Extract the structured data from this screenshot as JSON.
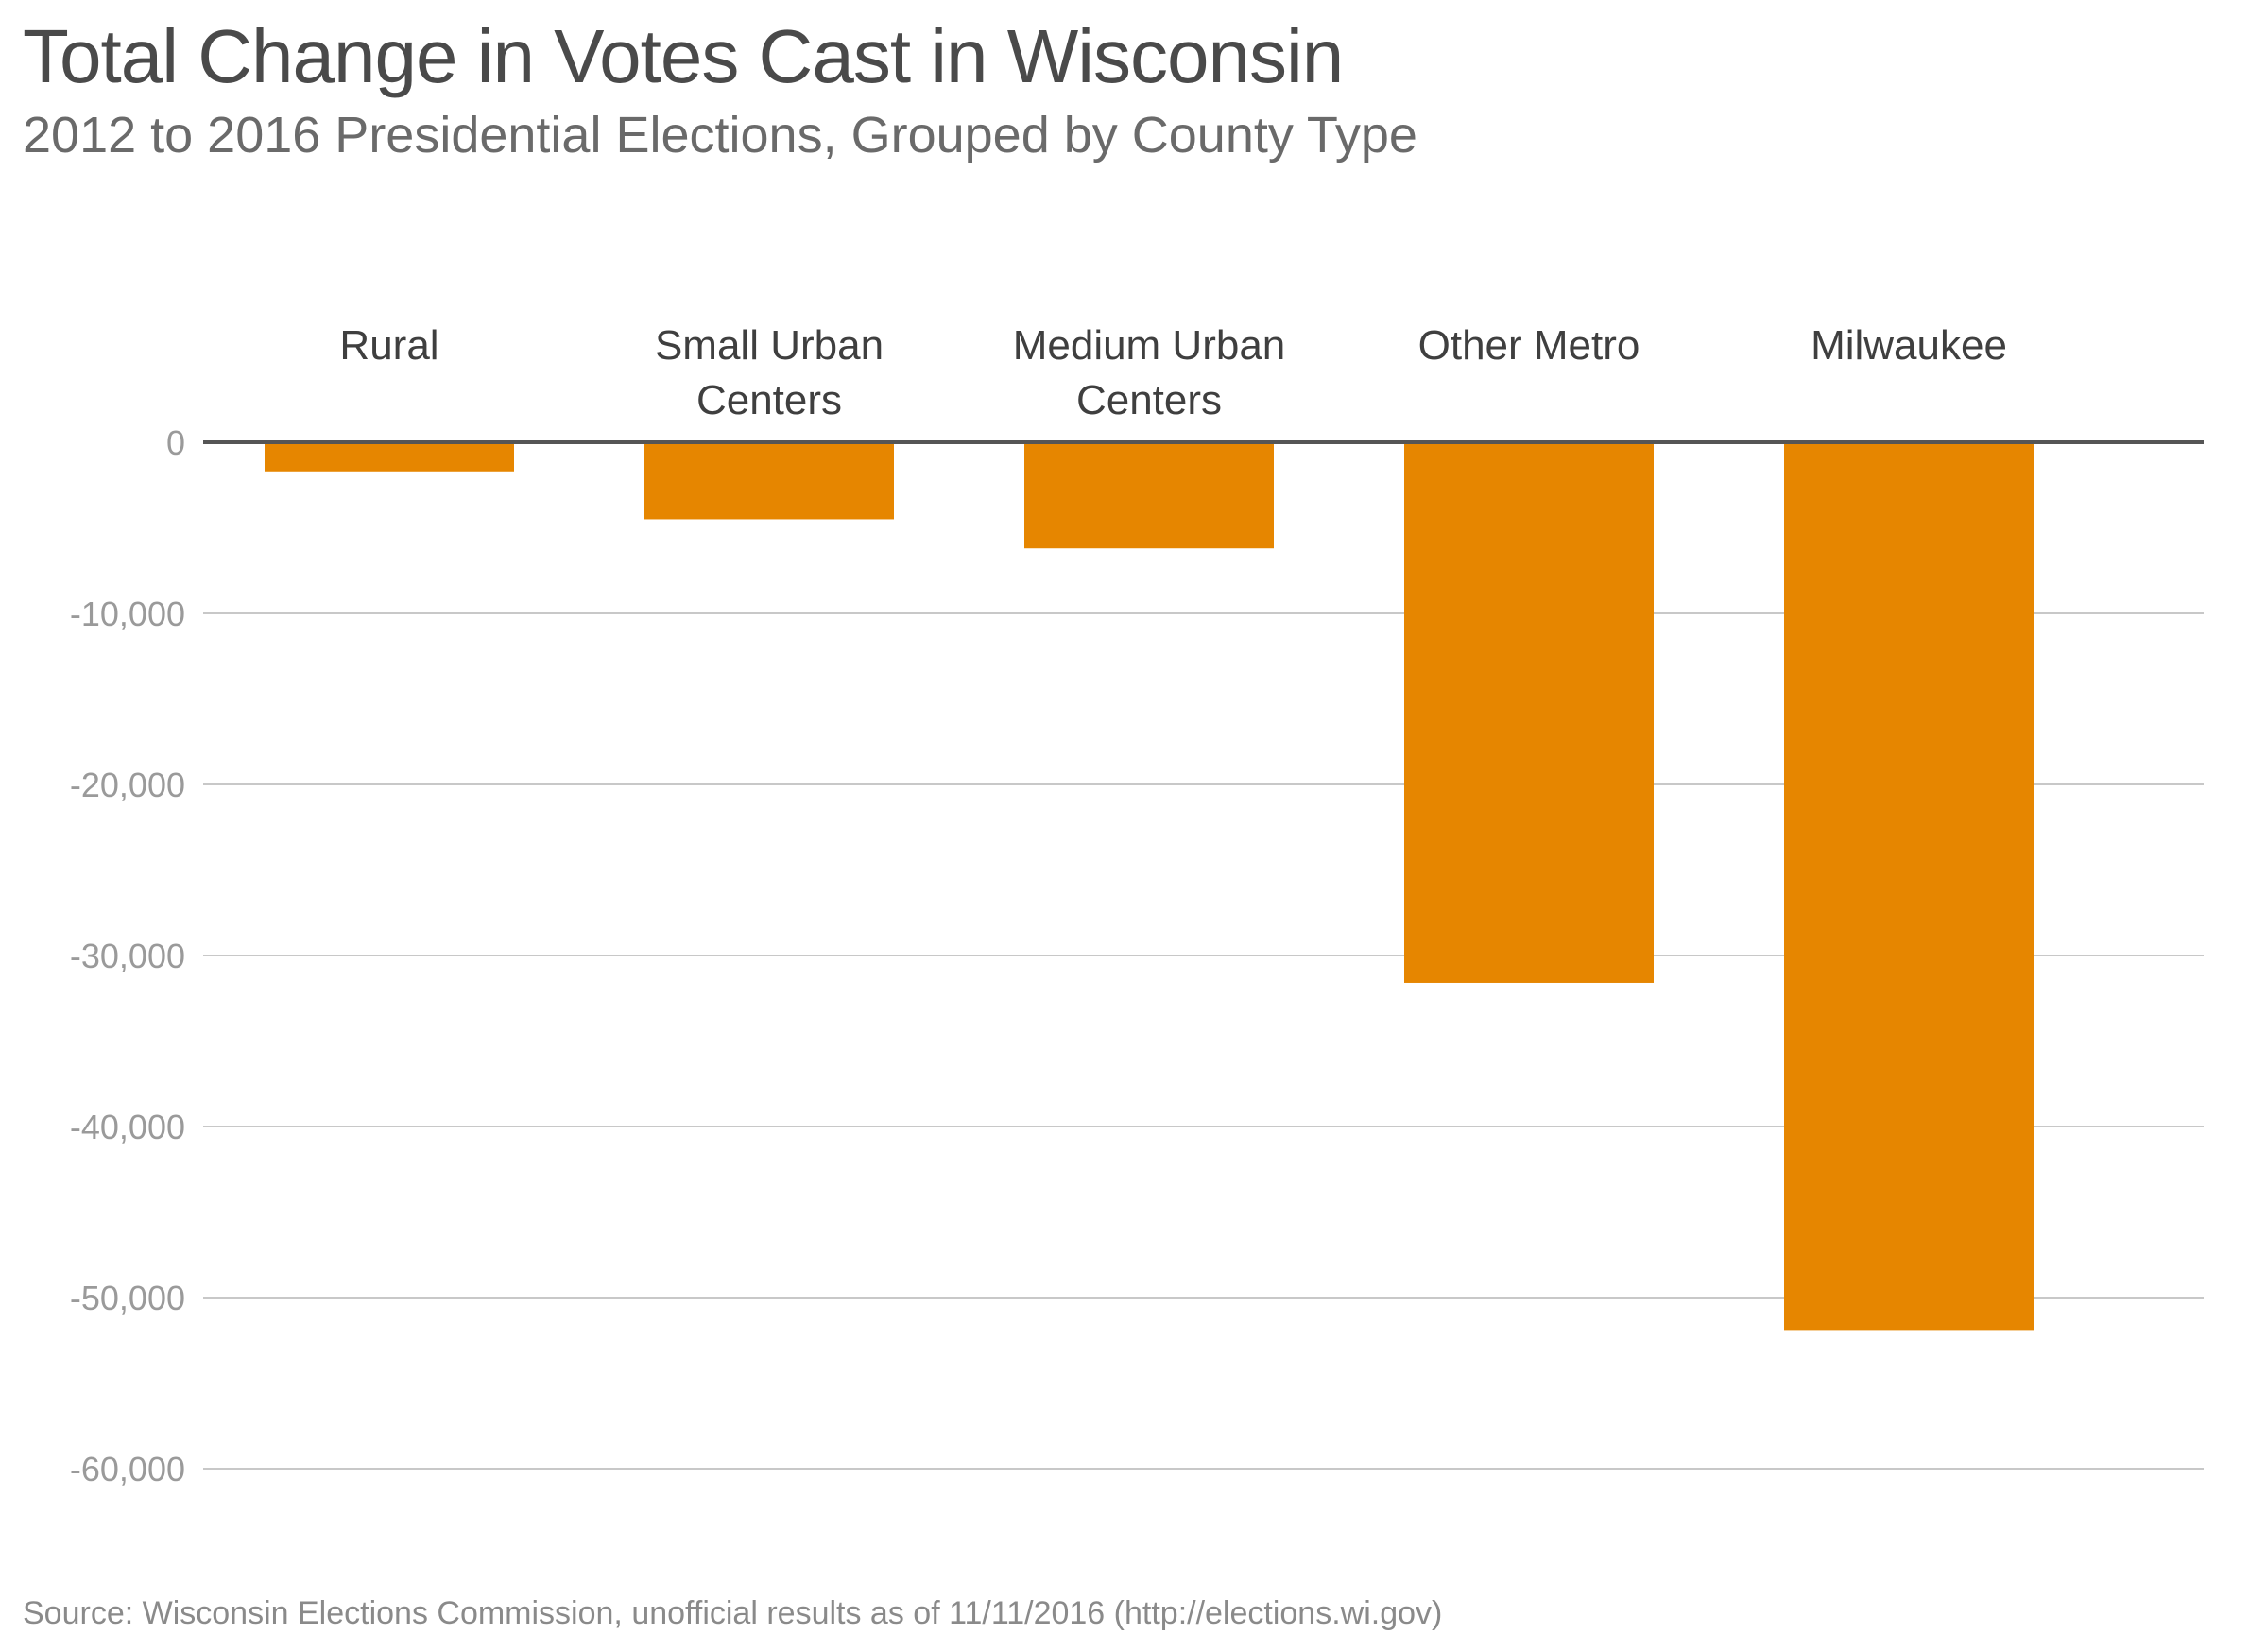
{
  "chart_data": {
    "type": "bar",
    "title": "Total Change in Votes Cast in Wisconsin",
    "subtitle": "2012 to 2016 Presidential Elections, Grouped by County Type",
    "source": "Source: Wisconsin Elections Commission, unofficial results as of 11/11/2016 (http://elections.wi.gov)",
    "categories": [
      "Rural",
      "Small Urban Centers",
      "Medium Urban Centers",
      "Other Metro",
      "Milwaukee"
    ],
    "category_label_lines": [
      [
        "Rural"
      ],
      [
        "Small Urban",
        "Centers"
      ],
      [
        "Medium Urban",
        "Centers"
      ],
      [
        "Other Metro"
      ],
      [
        "Milwaukee"
      ]
    ],
    "values": [
      -1700,
      -4500,
      -6200,
      -31600,
      -51900
    ],
    "ylim": [
      -60000,
      0
    ],
    "yticks": [
      0,
      -10000,
      -20000,
      -30000,
      -40000,
      -50000,
      -60000
    ],
    "ytick_labels": [
      "0",
      "-10,000",
      "-20,000",
      "-30,000",
      "-40,000",
      "-50,000",
      "-60,000"
    ],
    "xlabel": "",
    "ylabel": "",
    "grid": true,
    "category_labels_position": "top",
    "colors": {
      "bar": "#e68600",
      "zero_line": "#555555",
      "grid": "#c8c8c8",
      "tick_label": "#9a9a9a",
      "category_label": "#3f3f3f"
    }
  }
}
